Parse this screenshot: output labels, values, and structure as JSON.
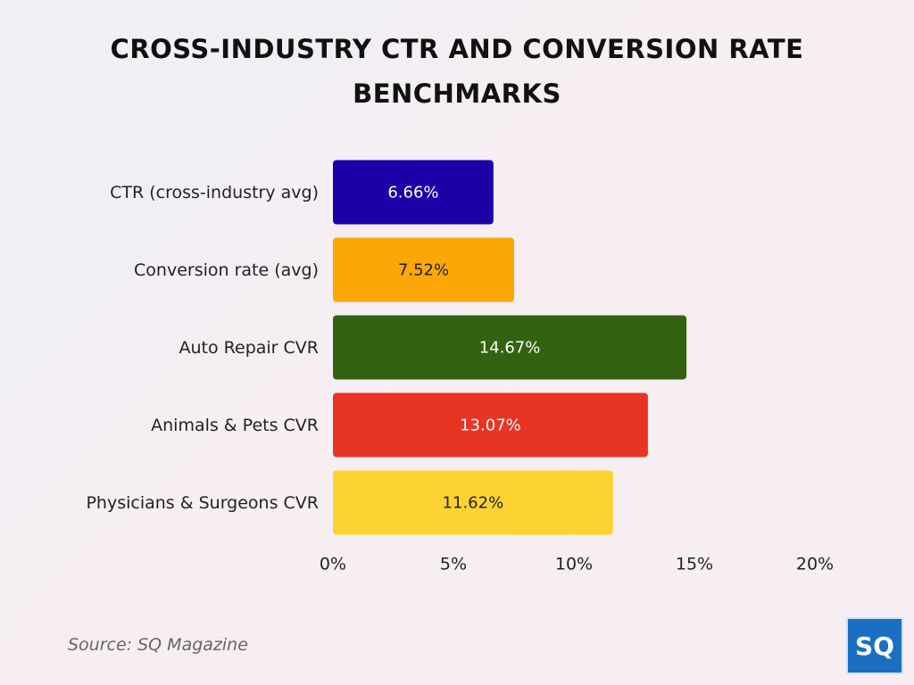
{
  "chart_data": {
    "type": "bar",
    "orientation": "horizontal",
    "title": "CROSS-INDUSTRY CTR AND CONVERSION RATE BENCHMARKS",
    "categories": [
      "CTR (cross-industry avg)",
      "Conversion rate (avg)",
      "Auto Repair CVR",
      "Animals & Pets CVR",
      "Physicians & Surgeons CVR"
    ],
    "values": [
      6.66,
      7.52,
      14.67,
      13.07,
      11.62
    ],
    "value_labels": [
      "6.66%",
      "7.52%",
      "14.67%",
      "13.07%",
      "11.62%"
    ],
    "colors": [
      "#1a02a8",
      "#fba707",
      "#336211",
      "#e83424",
      "#fdd331"
    ],
    "xlim": [
      0,
      20
    ],
    "xticks": [
      {
        "value": 0,
        "label": "0%"
      },
      {
        "value": 5,
        "label": "5%"
      },
      {
        "value": 10,
        "label": "10%"
      },
      {
        "value": 15,
        "label": "15%"
      },
      {
        "value": 20,
        "label": "20%"
      }
    ],
    "grid": false,
    "source": "Source: SQ Magazine",
    "logo": "SQ"
  }
}
